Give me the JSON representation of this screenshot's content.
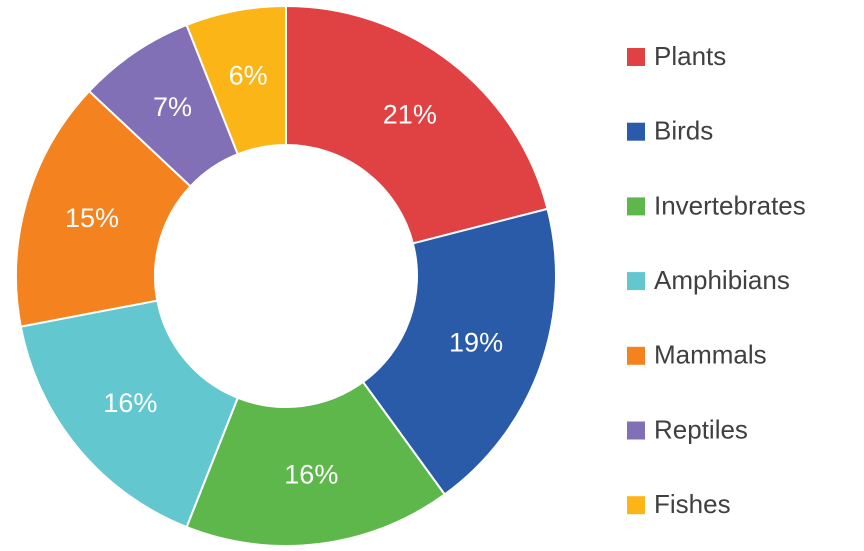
{
  "chart_data": {
    "type": "donut",
    "categories": [
      "Plants",
      "Birds",
      "Invertebrates",
      "Amphibians",
      "Mammals",
      "Reptiles",
      "Fishes"
    ],
    "values": [
      21,
      19,
      16,
      16,
      15,
      7,
      6
    ],
    "value_labels": [
      "21%",
      "19%",
      "16%",
      "16%",
      "15%",
      "7%",
      "6%"
    ],
    "colors": [
      "#e04143",
      "#2a5ba8",
      "#5db74a",
      "#62c7cf",
      "#f4821f",
      "#8270b6",
      "#fbb517"
    ],
    "legend": "right"
  }
}
